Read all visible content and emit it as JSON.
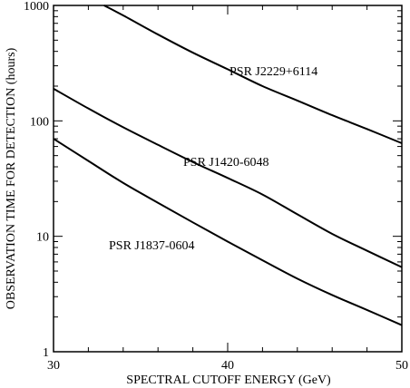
{
  "chart_data": {
    "type": "line",
    "title": "",
    "xlabel": "SPECTRAL CUTOFF ENERGY (GeV)",
    "ylabel": "OBSERVATION TIME FOR DETECTION (hours)",
    "xlim": [
      30,
      50
    ],
    "ylim": [
      1,
      1000
    ],
    "yscale": "log",
    "grid": false,
    "legend": "none",
    "x_ticks": [
      30,
      40,
      50
    ],
    "x_tick_labels": [
      "30",
      "40",
      "50"
    ],
    "y_ticks": [
      1,
      10,
      100,
      1000
    ],
    "y_tick_labels": [
      "1",
      "10",
      "100",
      "1000"
    ],
    "series": [
      {
        "name": "PSR J2229+6114",
        "x": [
          32.9,
          34,
          36,
          38,
          40,
          42,
          44,
          46,
          48,
          50
        ],
        "values": [
          1000,
          820,
          560,
          390,
          280,
          200,
          150,
          112,
          85,
          64
        ]
      },
      {
        "name": "PSR J1420-6048",
        "x": [
          30,
          32,
          34,
          36,
          38,
          40,
          42,
          44,
          46,
          48,
          50
        ],
        "values": [
          190,
          128,
          88,
          62,
          44,
          32,
          23,
          15.5,
          10.5,
          7.5,
          5.4
        ]
      },
      {
        "name": "PSR J1837-0604",
        "x": [
          30,
          32,
          34,
          36,
          38,
          40,
          42,
          44,
          46,
          48,
          50
        ],
        "values": [
          70,
          45,
          29,
          19.5,
          13.2,
          9.0,
          6.2,
          4.3,
          3.1,
          2.3,
          1.7
        ]
      }
    ]
  }
}
